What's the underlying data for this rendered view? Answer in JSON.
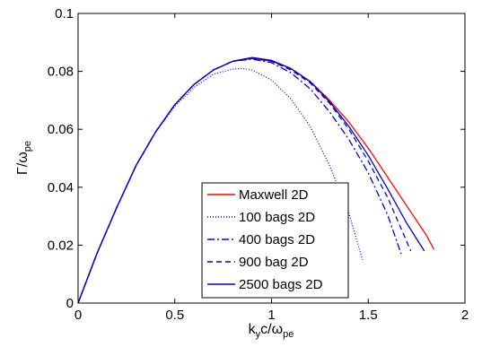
{
  "chart_data": {
    "type": "line",
    "xlabel": {
      "main": "k",
      "sub1": "y",
      "mid": "c/ω",
      "sub2": "pe"
    },
    "ylabel": {
      "main": "Γ/ω",
      "sub": "pe"
    },
    "xlim": [
      0,
      2
    ],
    "ylim": [
      0,
      0.1
    ],
    "xticks": [
      0,
      0.5,
      1,
      1.5,
      2
    ],
    "xtick_labels": [
      "0",
      "0.5",
      "1",
      "1.5",
      "2"
    ],
    "yticks": [
      0,
      0.02,
      0.04,
      0.06,
      0.08,
      0.1
    ],
    "ytick_labels": [
      "0",
      "0.02",
      "0.04",
      "0.06",
      "0.08",
      "0.1"
    ],
    "grid": false,
    "legend_position": "bottom-center",
    "series": [
      {
        "name": "Maxwell 2D",
        "color": "#ff0000",
        "dash": "solid",
        "x": [
          0,
          0.1,
          0.2,
          0.3,
          0.4,
          0.5,
          0.6,
          0.7,
          0.8,
          0.9,
          1.0,
          1.1,
          1.2,
          1.3,
          1.4,
          1.5,
          1.6,
          1.7,
          1.8,
          1.84
        ],
        "y": [
          0,
          0.0175,
          0.033,
          0.0475,
          0.059,
          0.0685,
          0.0755,
          0.0805,
          0.0835,
          0.0845,
          0.0835,
          0.081,
          0.0765,
          0.07,
          0.0625,
          0.0535,
          0.0435,
          0.0335,
          0.0235,
          0.0185
        ]
      },
      {
        "name": "100 bags 2D",
        "color": "#0000ee",
        "dash": "1,2",
        "x": [
          0,
          0.1,
          0.2,
          0.3,
          0.4,
          0.5,
          0.6,
          0.7,
          0.8,
          0.85,
          0.9,
          1.0,
          1.1,
          1.2,
          1.3,
          1.4,
          1.47
        ],
        "y": [
          0,
          0.0175,
          0.033,
          0.0475,
          0.059,
          0.068,
          0.0745,
          0.079,
          0.0808,
          0.081,
          0.0805,
          0.077,
          0.0705,
          0.061,
          0.0475,
          0.031,
          0.015
        ]
      },
      {
        "name": "400 bags 2D",
        "color": "#0000dd",
        "dash": "8,3,2,3",
        "x": [
          0,
          0.1,
          0.2,
          0.3,
          0.4,
          0.5,
          0.6,
          0.7,
          0.8,
          0.9,
          1.0,
          1.1,
          1.2,
          1.3,
          1.4,
          1.5,
          1.6,
          1.67
        ],
        "y": [
          0,
          0.0175,
          0.033,
          0.0475,
          0.059,
          0.0685,
          0.0755,
          0.0805,
          0.0835,
          0.0842,
          0.083,
          0.0795,
          0.074,
          0.066,
          0.0565,
          0.045,
          0.0305,
          0.017
        ]
      },
      {
        "name": "900 bag 2D",
        "color": "#0000dd",
        "dash": "6,4",
        "x": [
          0,
          0.1,
          0.2,
          0.3,
          0.4,
          0.5,
          0.6,
          0.7,
          0.8,
          0.9,
          1.0,
          1.1,
          1.2,
          1.3,
          1.4,
          1.5,
          1.6,
          1.72
        ],
        "y": [
          0,
          0.0175,
          0.033,
          0.0475,
          0.059,
          0.0685,
          0.0755,
          0.0805,
          0.0835,
          0.0845,
          0.0835,
          0.0805,
          0.076,
          0.069,
          0.06,
          0.049,
          0.0365,
          0.018
        ]
      },
      {
        "name": "2500 bags 2D",
        "color": "#0000cc",
        "dash": "solid",
        "x": [
          0,
          0.1,
          0.2,
          0.3,
          0.4,
          0.5,
          0.6,
          0.7,
          0.8,
          0.9,
          1.0,
          1.1,
          1.2,
          1.3,
          1.4,
          1.5,
          1.6,
          1.7,
          1.79
        ],
        "y": [
          0,
          0.0175,
          0.033,
          0.0475,
          0.059,
          0.0685,
          0.0755,
          0.0805,
          0.0835,
          0.0848,
          0.0838,
          0.081,
          0.0765,
          0.0695,
          0.061,
          0.051,
          0.0395,
          0.0275,
          0.018
        ]
      }
    ]
  }
}
